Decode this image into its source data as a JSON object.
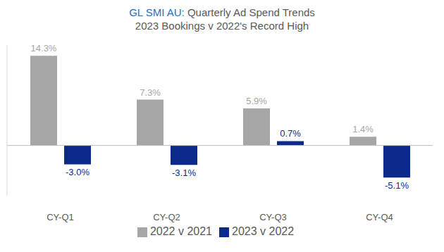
{
  "chart_data": {
    "type": "bar",
    "title": "GL SMI AU: Quarterly Ad Spend Trends",
    "subtitle": "2023 Bookings v 2022's Record High",
    "categories": [
      "CY-Q1",
      "CY-Q2",
      "CY-Q3",
      "CY-Q4"
    ],
    "series": [
      {
        "name": "2022 v 2021",
        "color": "#a6a6a6",
        "values": [
          14.3,
          7.3,
          5.9,
          1.4
        ],
        "value_labels": [
          "14.3%",
          "7.3%",
          "5.9%",
          "1.4%"
        ]
      },
      {
        "name": "2023 v 2022",
        "color": "#0b2a8c",
        "values": [
          -3.0,
          -3.1,
          0.7,
          -5.1
        ],
        "value_labels": [
          "-3.0%",
          "-3.1%",
          "0.7%",
          "-5.1%"
        ]
      }
    ],
    "ylim": [
      -8,
      16
    ],
    "yticks": [
      0
    ],
    "grid": false,
    "legend": "bottom",
    "data_labels": true,
    "tick_labels": "x"
  }
}
